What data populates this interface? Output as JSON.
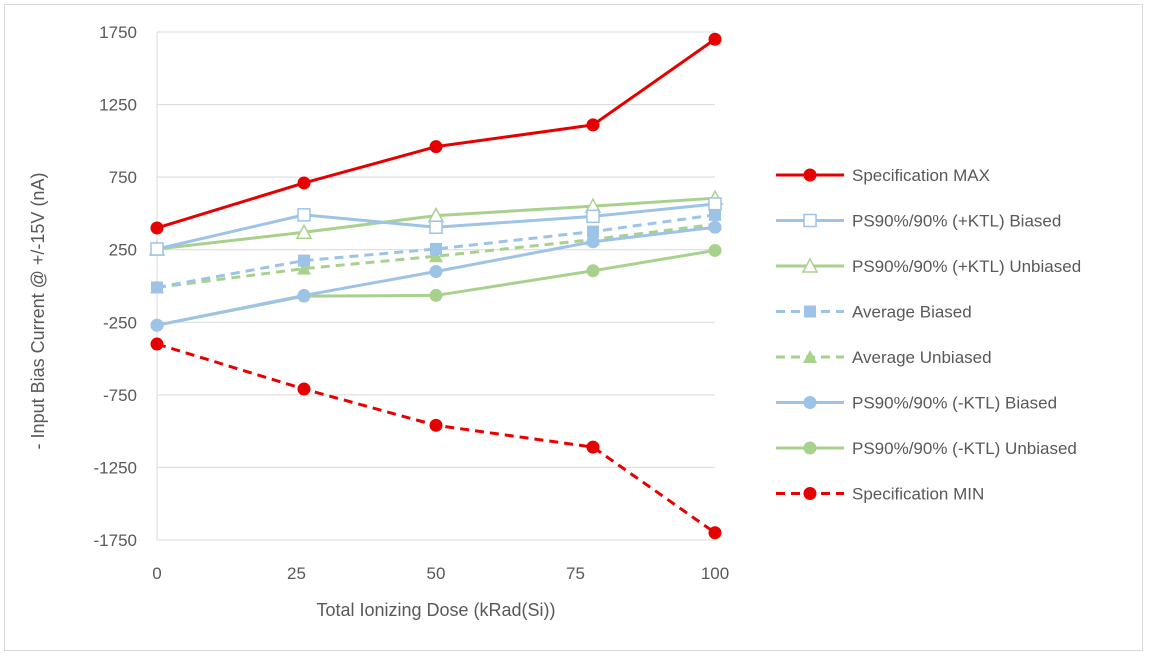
{
  "chart_data": {
    "type": "line",
    "title": "",
    "xlabel": "Total Ionizing Dose (kRad(Si))",
    "ylabel": "- Input Bias Current @ +/-15V  (nA)",
    "xlim": [
      0,
      100
    ],
    "ylim": [
      -1750,
      1750
    ],
    "xticks": [
      "0",
      "25",
      "50",
      "75",
      "100"
    ],
    "yticks": [
      "-1750",
      "-1250",
      "-750",
      "-250",
      "250",
      "750",
      "1250",
      "1750"
    ],
    "x": [
      0,
      25,
      50,
      75,
      100
    ],
    "grid": "horizontal",
    "legend_position": "right",
    "series": [
      {
        "name": "Specification MAX",
        "values": [
          400,
          710,
          960,
          1110,
          1700
        ],
        "color": "#e60000",
        "dash": false,
        "marker": "circle-filled"
      },
      {
        "name": "PS90%/90% (+KTL) Biased",
        "values": [
          255,
          490,
          405,
          480,
          565
        ],
        "color": "#9dc3e6",
        "dash": false,
        "marker": "square-open"
      },
      {
        "name": "PS90%/90% (+KTL) Unbiased",
        "values": [
          255,
          370,
          485,
          550,
          605
        ],
        "color": "#a9d18e",
        "dash": false,
        "marker": "triangle-open"
      },
      {
        "name": "Average Biased",
        "values": [
          -10,
          175,
          255,
          375,
          490
        ],
        "color": "#9dc3e6",
        "dash": true,
        "marker": "square-filled"
      },
      {
        "name": "Average Unbiased",
        "values": [
          -10,
          120,
          205,
          320,
          425
        ],
        "color": "#a9d18e",
        "dash": true,
        "marker": "triangle-filled"
      },
      {
        "name": "PS90%/90% (-KTL) Biased",
        "values": [
          -270,
          -65,
          100,
          305,
          405
        ],
        "color": "#9dc3e6",
        "dash": false,
        "marker": "circle-filled"
      },
      {
        "name": "PS90%/90% (-KTL) Unbiased",
        "values": [
          -270,
          -70,
          -65,
          105,
          245
        ],
        "color": "#a9d18e",
        "dash": false,
        "marker": "circle-filled"
      },
      {
        "name": "Specification MIN",
        "values": [
          -400,
          -710,
          -960,
          -1110,
          -1700
        ],
        "color": "#e60000",
        "dash": true,
        "marker": "circle-filled"
      }
    ]
  }
}
